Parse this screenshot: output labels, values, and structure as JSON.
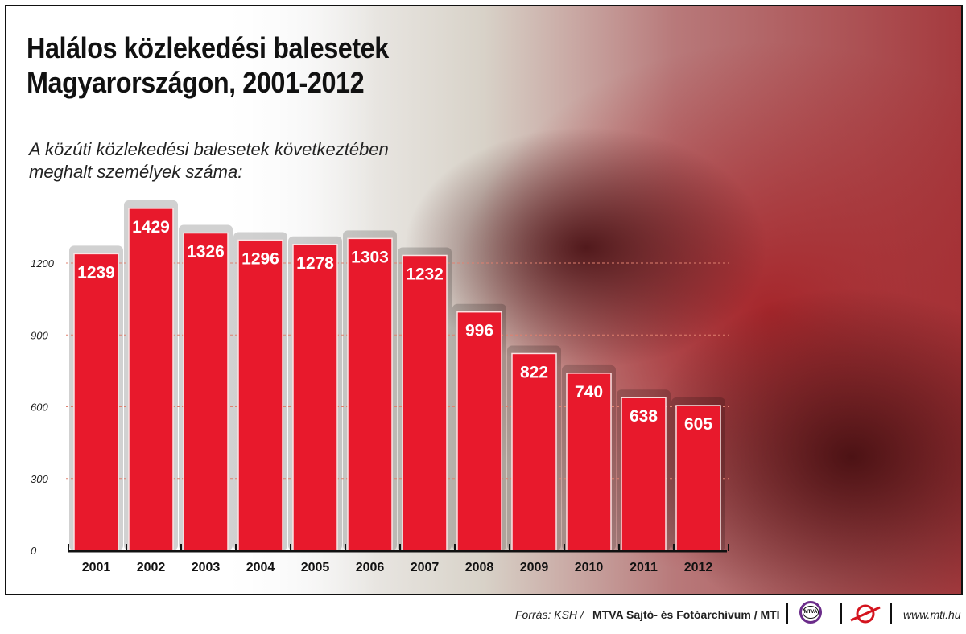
{
  "title_line1": "Halálos közlekedési balesetek",
  "title_line2": "Magyarországon, 2001-2012",
  "subtitle_line1": "A közúti közlekedési balesetek következtében",
  "subtitle_line2": "meghalt személyek száma:",
  "footer": {
    "source_prefix": "Forrás: KSH /",
    "source_bold": "MTVA Sajtó- és Fotóarchívum / MTI",
    "mtva_logo_text": "MTVA",
    "url": "www.mti.hu"
  },
  "colors": {
    "bar": "#e8192c",
    "grid": "#e0806f",
    "axis": "#111111"
  },
  "chart_data": {
    "type": "bar",
    "title": "Halálos közlekedési balesetek Magyarországon, 2001-2012",
    "xlabel": "",
    "ylabel": "",
    "categories": [
      "2001",
      "2002",
      "2003",
      "2004",
      "2005",
      "2006",
      "2007",
      "2008",
      "2009",
      "2010",
      "2011",
      "2012"
    ],
    "values": [
      1239,
      1429,
      1326,
      1296,
      1278,
      1303,
      1232,
      996,
      822,
      740,
      638,
      605
    ],
    "ylim": [
      0,
      1500
    ],
    "yticks": [
      0,
      300,
      600,
      900,
      1200
    ],
    "grid": true,
    "legend": "none"
  }
}
